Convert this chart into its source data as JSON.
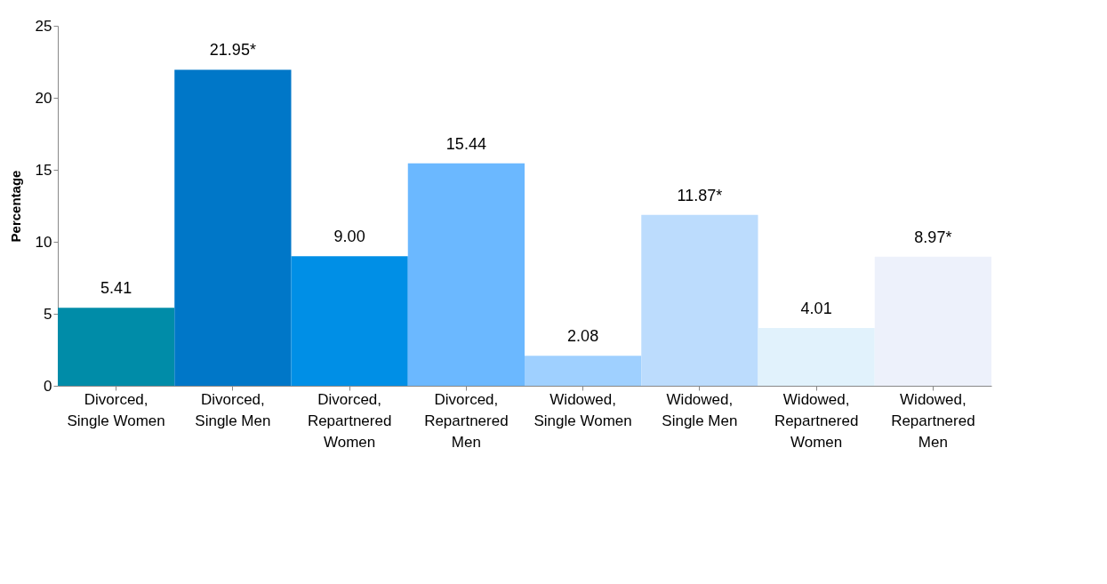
{
  "chart_data": {
    "type": "bar",
    "ylabel": "Percentage",
    "categories": [
      "Divorced, Single Women",
      "Divorced, Single Men",
      "Divorced, Repartnered Women",
      "Divorced, Repartnered Men",
      "Widowed, Single Women",
      "Widowed, Single Men",
      "Widowed, Repartnered Women",
      "Widowed, Repartnered Men"
    ],
    "values": [
      5.41,
      21.95,
      9.0,
      15.44,
      2.08,
      11.87,
      4.01,
      8.97
    ],
    "value_labels": [
      "5.41",
      "21.95*",
      "9.00",
      "15.44",
      "2.08",
      "11.87*",
      "4.01",
      "8.97*"
    ],
    "colors": [
      "#008ca8",
      "#0077c8",
      "#008fe6",
      "#6bb8ff",
      "#9fd0ff",
      "#bcdcfd",
      "#e1f2fc",
      "#edf1fb"
    ],
    "ylim": [
      0,
      25
    ],
    "yticks": [
      0,
      5,
      10,
      15,
      20,
      25
    ],
    "grid": false
  }
}
